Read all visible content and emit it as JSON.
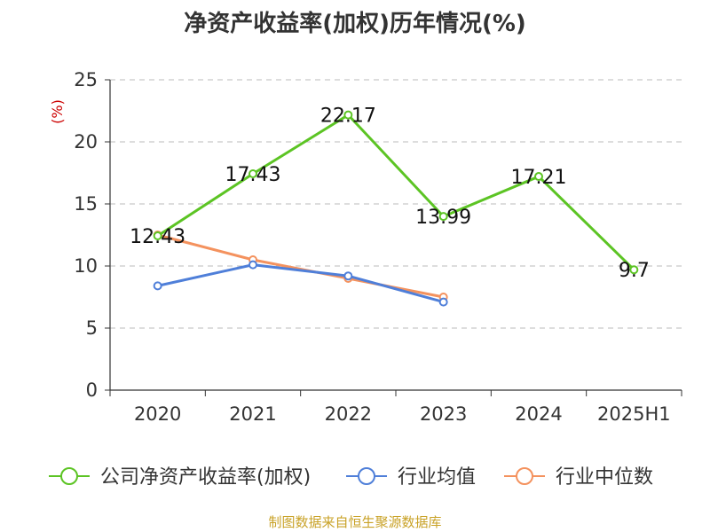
{
  "title": "净资产收益率(加权)历年情况(%)",
  "source": "制图数据来自恒生聚源数据库",
  "chart_data": {
    "type": "line",
    "title": "净资产收益率(加权)历年情况(%)",
    "ylabel": "(%)",
    "ylabel_color": "#cc0000",
    "categories": [
      "2020",
      "2021",
      "2022",
      "2023",
      "2024",
      "2025H1"
    ],
    "ylim": [
      0,
      25
    ],
    "yticks": [
      "0",
      "5",
      "10",
      "15",
      "20",
      "25"
    ],
    "grid": "horizontal dashed",
    "legend_position": "bottom",
    "series": [
      {
        "name": "公司净资产收益率(加权)",
        "color": "#5cc424",
        "values": [
          12.43,
          17.43,
          22.17,
          13.99,
          17.21,
          9.7
        ],
        "labels": [
          "12.43",
          "17.43",
          "22.17",
          "13.99",
          "17.21",
          "9.7"
        ]
      },
      {
        "name": "行业均值",
        "color": "#4f7fd9",
        "values": [
          8.4,
          10.1,
          9.2,
          7.1,
          null,
          null
        ]
      },
      {
        "name": "行业中位数",
        "color": "#f4925e",
        "values": [
          12.5,
          10.5,
          9.0,
          7.5,
          null,
          null
        ]
      }
    ]
  }
}
